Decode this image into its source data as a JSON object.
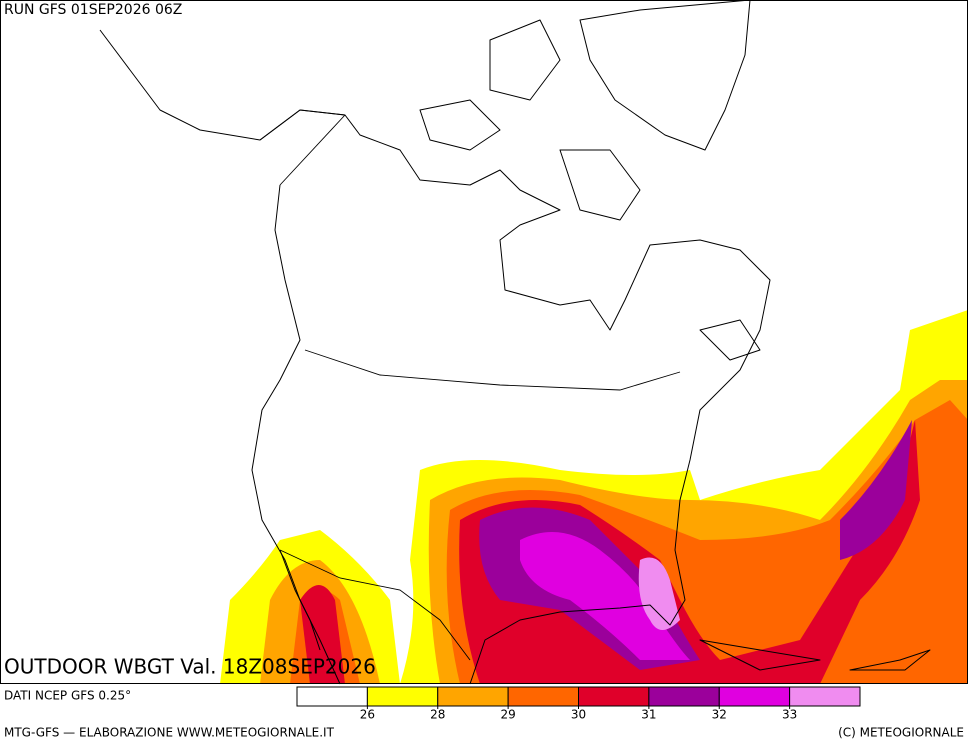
{
  "header": {
    "run": "RUN GFS 01SEP2026 06Z"
  },
  "map": {
    "title": "OUTDOOR WBGT Val. 18Z08SEP2026"
  },
  "legend": {
    "source": "DATI NCEP GFS 0.25°",
    "colors": [
      "#ffffff",
      "#ffff00",
      "#ffa500",
      "#ff6600",
      "#e0002a",
      "#9b009b",
      "#e000e0",
      "#f08cf0"
    ],
    "ticks": [
      26,
      28,
      29,
      30,
      31,
      32,
      33
    ]
  },
  "footer": {
    "left": "MTG-GFS — ELABORAZIONE WWW.METEOGIORNALE.IT",
    "right": "(C) METEOGIORNALE"
  }
}
